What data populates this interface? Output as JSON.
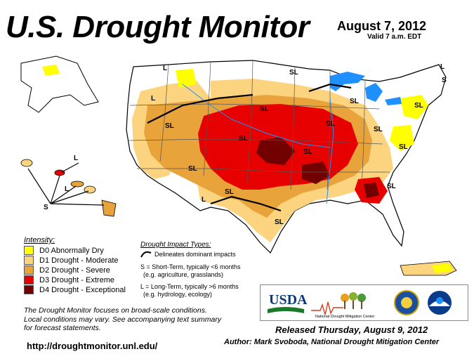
{
  "header": {
    "title": "U.S. Drought Monitor",
    "date": "August 7, 2012",
    "valid": "Valid 7 a.m. EDT"
  },
  "legend": {
    "intensity_title": "Intensity:",
    "items": [
      {
        "label": "D0 Abnormally Dry",
        "color": "#ffff00"
      },
      {
        "label": "D1 Drought - Moderate",
        "color": "#fcd37f"
      },
      {
        "label": "D2 Drought - Severe",
        "color": "#e8a33a"
      },
      {
        "label": "D3 Drought - Extreme",
        "color": "#e60000"
      },
      {
        "label": "D4 Drought - Exceptional",
        "color": "#730000"
      }
    ],
    "impact_title": "Drought Impact Types:",
    "impact_line": "Delineates dominant impacts",
    "impact_s": "S = Short-Term, typically <6 months",
    "impact_s_eg": "(e.g. agriculture, grasslands)",
    "impact_l": "L = Long-Term, typically >6 months",
    "impact_l_eg": "(e.g. hydrology, ecology)"
  },
  "note": {
    "line1": "The Drought Monitor focuses on broad-scale conditions.",
    "line2": "Local conditions may vary. See accompanying text summary",
    "line3": "for forecast statements."
  },
  "footer": {
    "url": "http://droughtmonitor.unl.edu/",
    "released": "Released Thursday, August 9, 2012",
    "author": "Author: Mark Svoboda, National Drought Mitigation Center"
  },
  "logos": {
    "usda": "USDA",
    "ndmc": "National Drought Mitigation Center"
  },
  "map_labels": {
    "sl": "SL",
    "s": "S",
    "l": "L"
  },
  "colors": {
    "water": "#1e90ff",
    "border": "#000000"
  }
}
